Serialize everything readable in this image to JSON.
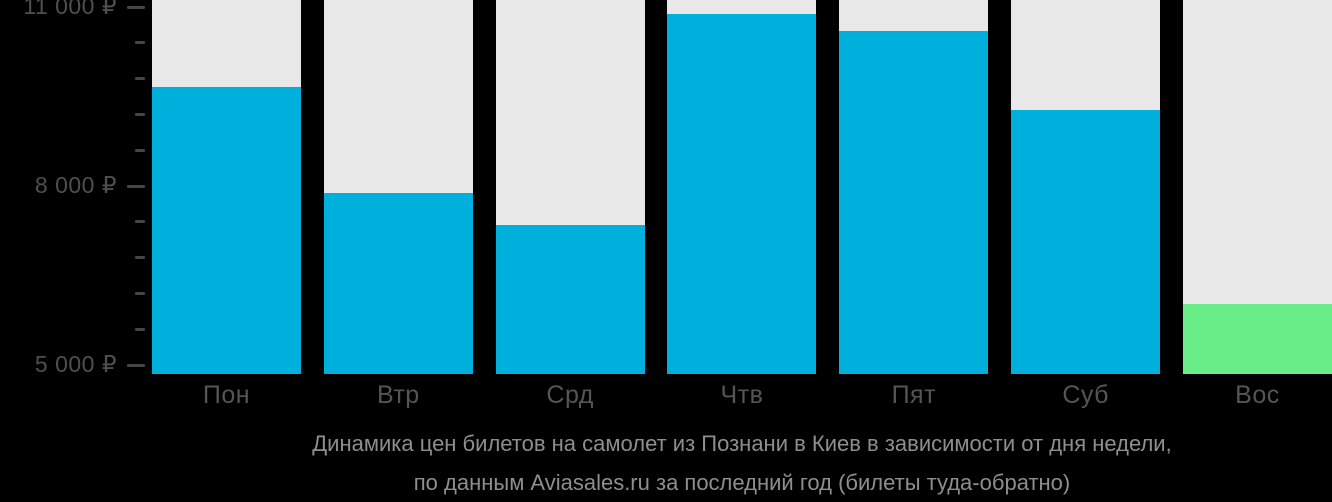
{
  "colors": {
    "background": "#000000",
    "column_track": "#E8E8E8",
    "bar_default": "#00B0DC",
    "bar_highlight": "#69ED88",
    "axis_text": "#4F4F4F",
    "day_text": "#555555",
    "tick": "#454545",
    "caption_text": "#8E8E8E"
  },
  "chart_data": {
    "type": "bar",
    "title": "Динамика цен билетов на самолет из Познани в Киев в зависимости от дня недели, по данным Aviasales.ru за последний год (билеты туда-обратно)",
    "categories": [
      "Пон",
      "Втр",
      "Срд",
      "Чтв",
      "Пят",
      "Суб",
      "Вос"
    ],
    "values": [
      9670,
      7880,
      7350,
      10890,
      10600,
      9270,
      6020
    ],
    "bar_colors": [
      "#00B0DC",
      "#00B0DC",
      "#00B0DC",
      "#00B0DC",
      "#00B0DC",
      "#00B0DC",
      "#69ED88"
    ],
    "highlight_index": 6,
    "xlabel": "",
    "ylabel": "",
    "ylim": [
      4850,
      11120
    ],
    "grid": false,
    "legend": "none",
    "currency": "₽",
    "y_ticks": [
      {
        "value": 11000,
        "label": "11 000 ₽"
      },
      {
        "value": 8000,
        "label": "8 000 ₽"
      },
      {
        "value": 5000,
        "label": "5 000 ₽"
      }
    ],
    "y_minor_ticks": [
      10400,
      9800,
      9200,
      8600,
      7400,
      6800,
      6200,
      5600
    ]
  },
  "caption": {
    "line1": "Динамика цен билетов на самолет из Познани в Киев в зависимости от дня недели,",
    "line2": "по данным Aviasales.ru за последний год (билеты туда-обратно)"
  }
}
